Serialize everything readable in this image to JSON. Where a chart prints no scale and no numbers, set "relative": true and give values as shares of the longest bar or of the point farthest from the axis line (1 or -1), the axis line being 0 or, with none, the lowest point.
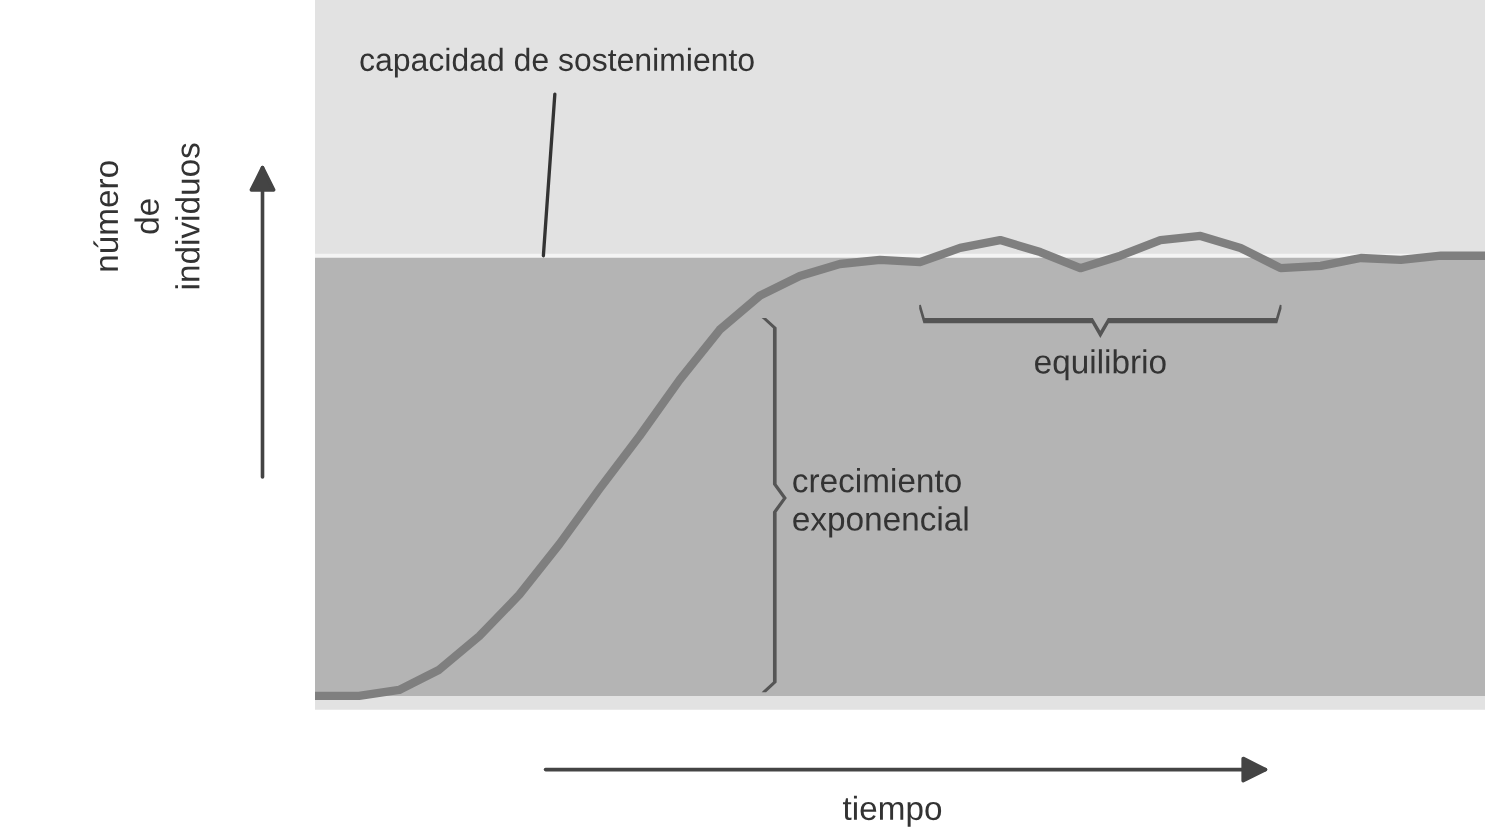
{
  "chart_data": {
    "type": "line",
    "relative": true,
    "categories": [
      null,
      null,
      null,
      null,
      null,
      null,
      null,
      null,
      null,
      null,
      null,
      null,
      null,
      null,
      null,
      null,
      null,
      null,
      null,
      null,
      null,
      null,
      null,
      null,
      null,
      null,
      null,
      null,
      null,
      null
    ],
    "series": [
      {
        "color": "#7f7f7f",
        "values": [
          0,
          0,
          0.013,
          0.057,
          0.13,
          0.22,
          0.33,
          0.45,
          0.565,
          0.687,
          0.796,
          0.87,
          0.913,
          0.939,
          0.948,
          0.943,
          0.974,
          0.991,
          0.965,
          0.93,
          0.957,
          0.991,
          1,
          0.974,
          0.93,
          0.935,
          0.952,
          0.948,
          0.957,
          0.957
        ]
      }
    ],
    "ref_lines": [
      {
        "axis": "y",
        "value": 0.957,
        "label": "capacidad de sostenimiento",
        "color": "#f4f4f4"
      }
    ],
    "bands": [
      {
        "axis": "y",
        "from": 0,
        "to": 0.957,
        "color": "#b4b4b4"
      }
    ],
    "xlabel": "tiempo",
    "ylabel": "número\nde\nindividuos",
    "annotations": [
      "equilibrio",
      "crecimiento\nexponencial"
    ],
    "legend": false,
    "tick_labels": false,
    "marker": "none",
    "line_style": "solid"
  }
}
